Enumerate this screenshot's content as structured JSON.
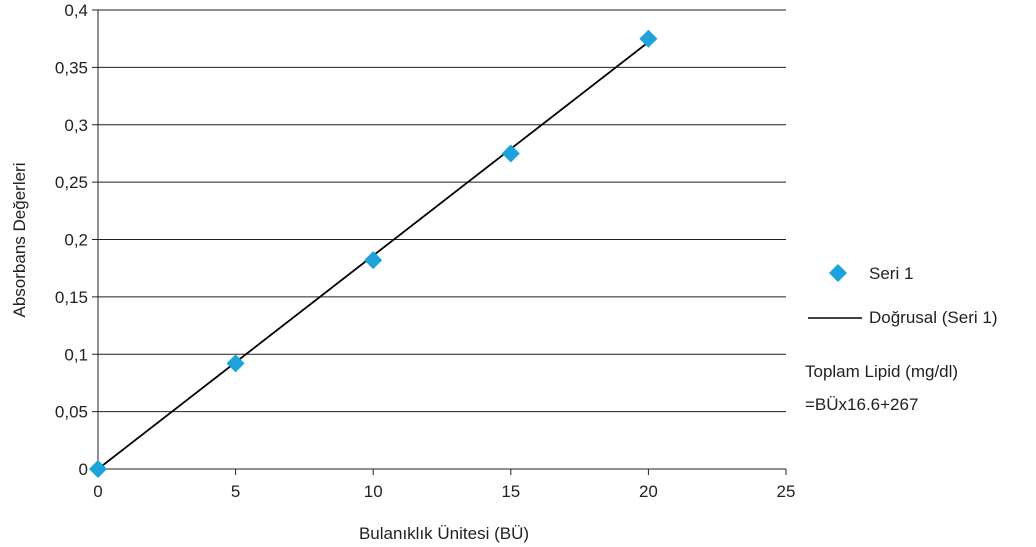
{
  "chart_data": {
    "type": "scatter",
    "title": "",
    "xlabel": "Bulanıklık Ünitesi (BÜ)",
    "ylabel": "Absorbans Değerleri",
    "xlim": [
      0,
      25
    ],
    "ylim": [
      0,
      0.4
    ],
    "x_ticks": [
      0,
      5,
      10,
      15,
      20,
      25
    ],
    "x_tick_labels": [
      "0",
      "5",
      "10",
      "15",
      "20",
      "25"
    ],
    "y_ticks": [
      0,
      0.05,
      0.1,
      0.15,
      0.2,
      0.25,
      0.3,
      0.35,
      0.4
    ],
    "y_tick_labels": [
      "0",
      "0,05",
      "0,1",
      "0,15",
      "0,2",
      "0,25",
      "0,3",
      "0,35",
      "0,4"
    ],
    "grid": "horizontal",
    "legend_position": "right",
    "series": [
      {
        "name": "Seri 1",
        "marker": "diamond",
        "color": "#1aa3dd",
        "points": [
          {
            "x": 0,
            "y": 0.0
          },
          {
            "x": 5,
            "y": 0.092
          },
          {
            "x": 10,
            "y": 0.182
          },
          {
            "x": 15,
            "y": 0.275
          },
          {
            "x": 20,
            "y": 0.375
          }
        ]
      }
    ],
    "trendline": {
      "name": "Doğrusal (Seri 1)",
      "type": "linear",
      "color": "#000000",
      "x_range": [
        0,
        20
      ],
      "y_range": [
        0.0,
        0.372
      ]
    },
    "annotation": {
      "line1": "Toplam Lipid (mg/dl)",
      "line2": "=BÜx16.6+267"
    },
    "colors": {
      "marker": "#1aa3dd",
      "gridline": "#231f20",
      "axis": "#231f20",
      "text": "#231f20"
    }
  }
}
